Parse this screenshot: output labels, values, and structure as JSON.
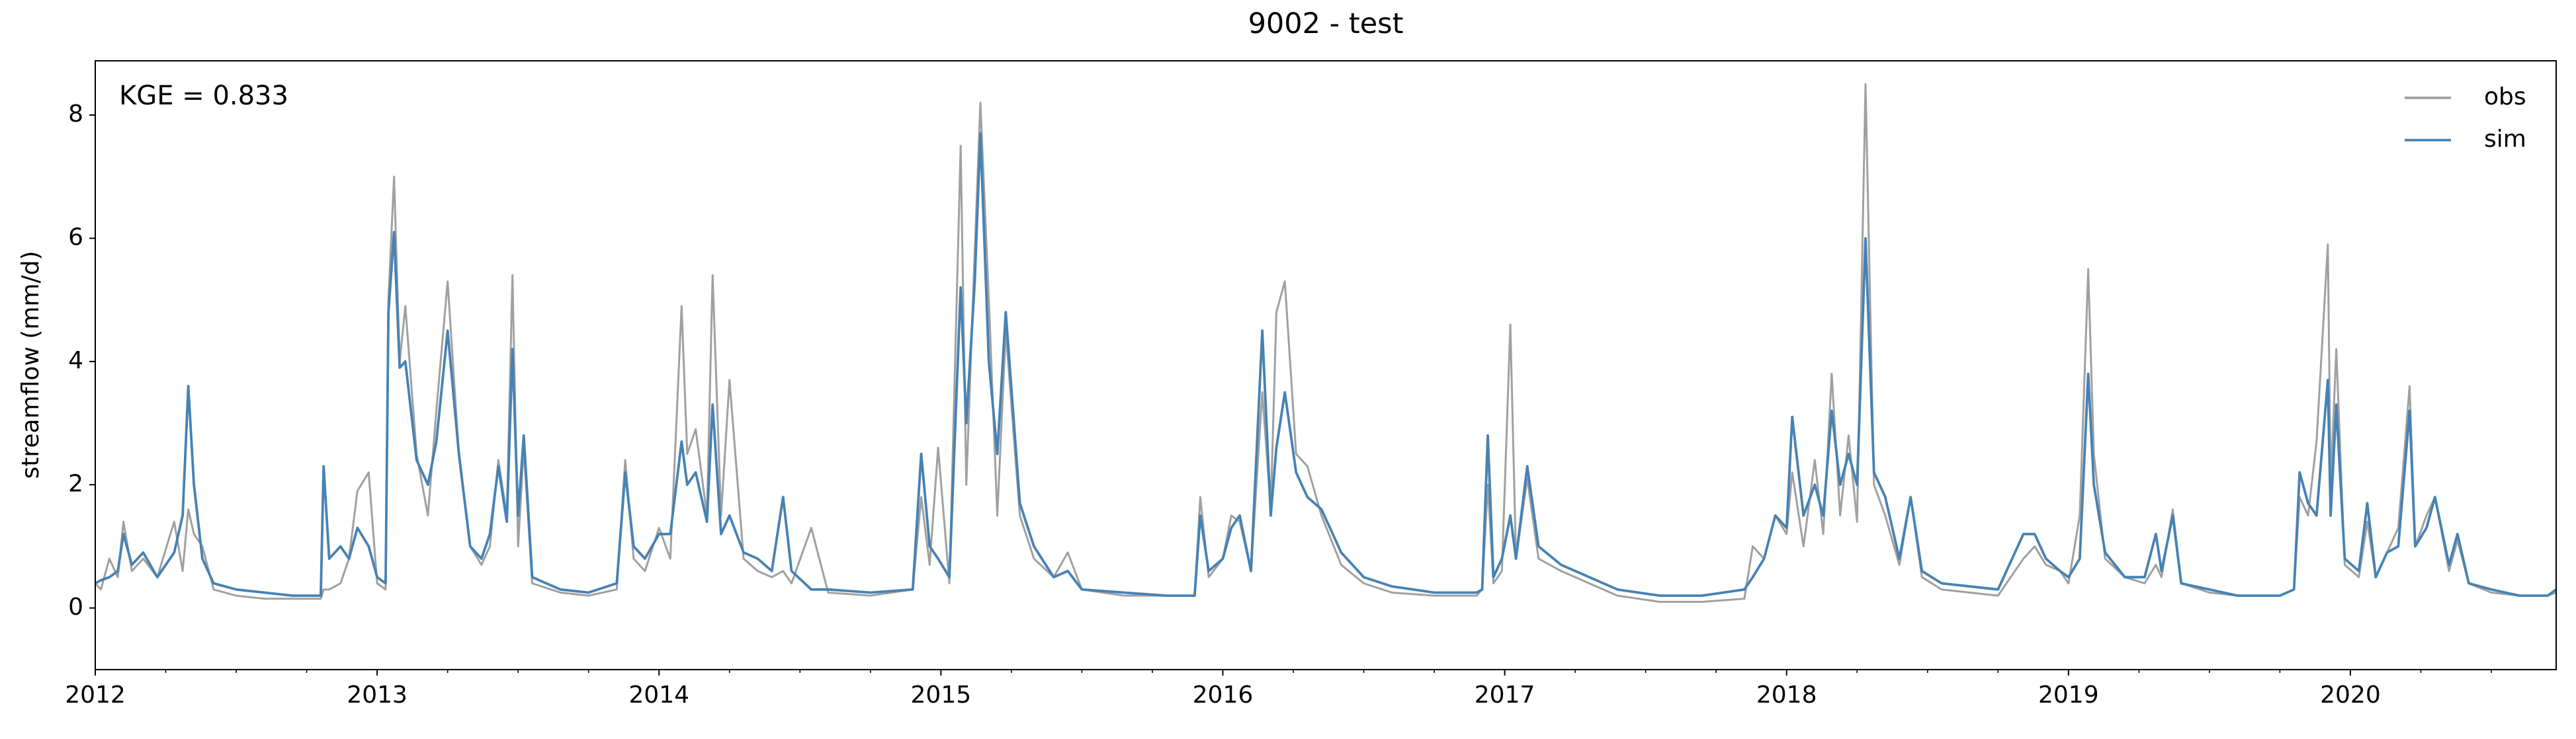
{
  "chart_data": {
    "type": "line",
    "title": "9002 - test",
    "ylabel": "streamflow (mm/d)",
    "annotations": [
      {
        "text": "KGE = 0.833"
      }
    ],
    "legend": "upper right",
    "xlim": [
      2012,
      2020.73
    ],
    "xticks": [
      2012,
      2013,
      2014,
      2015,
      2016,
      2017,
      2018,
      2019,
      2020
    ],
    "xminorticks": [
      2012.25,
      2012.5,
      2012.75,
      2013.25,
      2013.5,
      2013.75,
      2014.25,
      2014.5,
      2014.75,
      2015.25,
      2015.5,
      2015.75,
      2016.25,
      2016.5,
      2016.75,
      2017.25,
      2017.5,
      2017.75,
      2018.25,
      2018.5,
      2018.75,
      2019.25,
      2019.5,
      2019.75,
      2020.25,
      2020.5
    ],
    "ylim": [
      -1,
      8.88
    ],
    "yticks": [
      0,
      2,
      4,
      6,
      8
    ],
    "x": [
      2012.0,
      2012.02,
      2012.05,
      2012.08,
      2012.1,
      2012.13,
      2012.17,
      2012.22,
      2012.28,
      2012.31,
      2012.33,
      2012.35,
      2012.38,
      2012.42,
      2012.5,
      2012.6,
      2012.7,
      2012.8,
      2012.81,
      2012.83,
      2012.87,
      2012.9,
      2012.93,
      2012.97,
      2013.0,
      2013.03,
      2013.04,
      2013.06,
      2013.08,
      2013.1,
      2013.14,
      2013.18,
      2013.21,
      2013.25,
      2013.29,
      2013.33,
      2013.37,
      2013.4,
      2013.43,
      2013.46,
      2013.48,
      2013.5,
      2013.52,
      2013.55,
      2013.65,
      2013.75,
      2013.85,
      2013.88,
      2013.91,
      2013.95,
      2014.0,
      2014.04,
      2014.08,
      2014.1,
      2014.13,
      2014.17,
      2014.19,
      2014.22,
      2014.25,
      2014.3,
      2014.35,
      2014.4,
      2014.44,
      2014.47,
      2014.54,
      2014.6,
      2014.75,
      2014.9,
      2014.93,
      2014.96,
      2014.99,
      2015.03,
      2015.07,
      2015.09,
      2015.12,
      2015.14,
      2015.17,
      2015.2,
      2015.23,
      2015.28,
      2015.33,
      2015.4,
      2015.45,
      2015.5,
      2015.65,
      2015.8,
      2015.9,
      2015.92,
      2015.95,
      2016.0,
      2016.03,
      2016.06,
      2016.1,
      2016.14,
      2016.17,
      2016.19,
      2016.22,
      2016.26,
      2016.3,
      2016.35,
      2016.42,
      2016.5,
      2016.6,
      2016.75,
      2016.9,
      2016.92,
      2016.94,
      2016.96,
      2016.99,
      2017.02,
      2017.04,
      2017.08,
      2017.12,
      2017.2,
      2017.3,
      2017.4,
      2017.55,
      2017.7,
      2017.85,
      2017.88,
      2017.92,
      2017.96,
      2018.0,
      2018.02,
      2018.06,
      2018.1,
      2018.13,
      2018.16,
      2018.19,
      2018.22,
      2018.25,
      2018.28,
      2018.31,
      2018.35,
      2018.4,
      2018.44,
      2018.48,
      2018.55,
      2018.65,
      2018.75,
      2018.84,
      2018.88,
      2018.92,
      2018.97,
      2019.0,
      2019.04,
      2019.07,
      2019.09,
      2019.13,
      2019.2,
      2019.27,
      2019.31,
      2019.33,
      2019.37,
      2019.4,
      2019.5,
      2019.6,
      2019.75,
      2019.8,
      2019.82,
      2019.85,
      2019.88,
      2019.92,
      2019.93,
      2019.95,
      2019.98,
      2020.03,
      2020.06,
      2020.09,
      2020.13,
      2020.17,
      2020.21,
      2020.23,
      2020.27,
      2020.3,
      2020.35,
      2020.38,
      2020.42,
      2020.5,
      2020.6,
      2020.7,
      2020.73
    ],
    "series": [
      {
        "name": "obs",
        "color": "#a0a0a0",
        "values": [
          0.4,
          0.3,
          0.8,
          0.5,
          1.4,
          0.6,
          0.8,
          0.5,
          1.4,
          0.6,
          1.6,
          1.2,
          1.0,
          0.3,
          0.2,
          0.15,
          0.15,
          0.15,
          0.3,
          0.3,
          0.4,
          0.8,
          1.9,
          2.2,
          0.4,
          0.3,
          5.0,
          7.0,
          4.0,
          4.9,
          2.5,
          1.5,
          3.2,
          5.3,
          2.5,
          1.0,
          0.7,
          1.0,
          2.4,
          1.5,
          5.4,
          1.0,
          2.6,
          0.4,
          0.25,
          0.2,
          0.3,
          2.4,
          0.8,
          0.6,
          1.3,
          0.8,
          4.9,
          2.5,
          2.9,
          1.5,
          5.4,
          1.5,
          3.7,
          0.8,
          0.6,
          0.5,
          0.6,
          0.4,
          1.3,
          0.25,
          0.2,
          0.3,
          1.8,
          0.7,
          2.6,
          0.4,
          7.5,
          2.0,
          5.8,
          8.2,
          5.0,
          1.5,
          4.5,
          1.5,
          0.8,
          0.5,
          0.9,
          0.3,
          0.2,
          0.2,
          0.2,
          1.8,
          0.5,
          0.8,
          1.5,
          1.4,
          0.6,
          3.5,
          1.6,
          4.8,
          5.3,
          2.5,
          2.3,
          1.5,
          0.7,
          0.4,
          0.25,
          0.2,
          0.2,
          0.3,
          2.0,
          0.4,
          0.6,
          4.6,
          0.8,
          2.1,
          0.8,
          0.6,
          0.4,
          0.2,
          0.1,
          0.1,
          0.15,
          1.0,
          0.8,
          1.5,
          1.2,
          2.2,
          1.0,
          2.4,
          1.2,
          3.8,
          1.5,
          2.8,
          1.4,
          8.5,
          2.0,
          1.5,
          0.7,
          1.8,
          0.5,
          0.3,
          0.25,
          0.2,
          0.8,
          1.0,
          0.7,
          0.6,
          0.4,
          1.5,
          5.5,
          2.5,
          0.8,
          0.5,
          0.4,
          0.7,
          0.5,
          1.6,
          0.4,
          0.25,
          0.2,
          0.2,
          0.3,
          1.8,
          1.5,
          2.7,
          5.9,
          2.0,
          4.2,
          0.7,
          0.5,
          1.4,
          0.5,
          0.9,
          1.3,
          3.6,
          1.0,
          1.5,
          1.8,
          0.6,
          1.1,
          0.4,
          0.25,
          0.2,
          0.2,
          0.25
        ]
      },
      {
        "name": "sim",
        "color": "#4682b4",
        "values": [
          0.4,
          0.45,
          0.5,
          0.6,
          1.2,
          0.7,
          0.9,
          0.5,
          0.9,
          1.5,
          3.6,
          2.0,
          0.8,
          0.4,
          0.3,
          0.25,
          0.2,
          0.2,
          2.3,
          0.8,
          1.0,
          0.8,
          1.3,
          1.0,
          0.5,
          0.4,
          4.8,
          6.1,
          3.9,
          4.0,
          2.4,
          2.0,
          2.7,
          4.5,
          2.5,
          1.0,
          0.8,
          1.2,
          2.3,
          1.4,
          4.2,
          1.5,
          2.8,
          0.5,
          0.3,
          0.25,
          0.4,
          2.2,
          1.0,
          0.8,
          1.2,
          1.2,
          2.7,
          2.0,
          2.2,
          1.4,
          3.3,
          1.2,
          1.5,
          0.9,
          0.8,
          0.6,
          1.8,
          0.6,
          0.3,
          0.3,
          0.25,
          0.3,
          2.5,
          1.0,
          0.8,
          0.5,
          5.2,
          3.0,
          5.3,
          7.7,
          4.0,
          2.5,
          4.8,
          1.7,
          1.0,
          0.5,
          0.6,
          0.3,
          0.25,
          0.2,
          0.2,
          1.5,
          0.6,
          0.8,
          1.3,
          1.5,
          0.6,
          4.5,
          1.5,
          2.6,
          3.5,
          2.2,
          1.8,
          1.6,
          0.9,
          0.5,
          0.35,
          0.25,
          0.25,
          0.3,
          2.8,
          0.5,
          0.8,
          1.5,
          0.8,
          2.3,
          1.0,
          0.7,
          0.5,
          0.3,
          0.2,
          0.2,
          0.3,
          0.5,
          0.8,
          1.5,
          1.3,
          3.1,
          1.5,
          2.0,
          1.5,
          3.2,
          2.0,
          2.5,
          2.0,
          6.0,
          2.2,
          1.8,
          0.8,
          1.8,
          0.6,
          0.4,
          0.35,
          0.3,
          1.2,
          1.2,
          0.8,
          0.6,
          0.5,
          0.8,
          3.8,
          2.0,
          0.9,
          0.5,
          0.5,
          1.2,
          0.6,
          1.5,
          0.4,
          0.3,
          0.2,
          0.2,
          0.3,
          2.2,
          1.7,
          1.5,
          3.7,
          1.5,
          3.3,
          0.8,
          0.6,
          1.7,
          0.5,
          0.9,
          1.0,
          3.2,
          1.0,
          1.3,
          1.8,
          0.7,
          1.2,
          0.4,
          0.3,
          0.2,
          0.2,
          0.3
        ]
      }
    ]
  }
}
